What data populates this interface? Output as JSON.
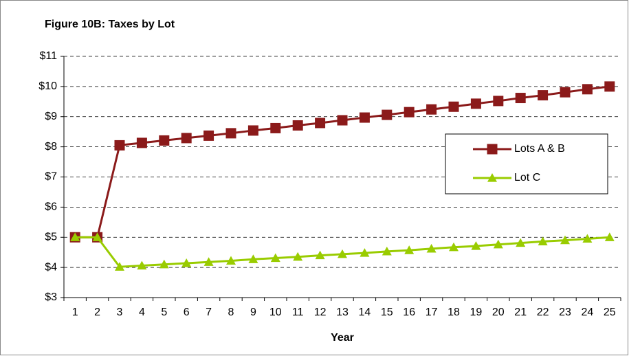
{
  "chart_data": {
    "type": "line",
    "title": "Figure 10B: Taxes by Lot",
    "x_label": "Year",
    "categories": [
      "1",
      "2",
      "3",
      "4",
      "5",
      "6",
      "7",
      "8",
      "9",
      "10",
      "11",
      "12",
      "13",
      "14",
      "15",
      "16",
      "17",
      "18",
      "19",
      "20",
      "21",
      "22",
      "23",
      "24",
      "25"
    ],
    "series": [
      {
        "name": "Lots A & B",
        "color": "#8b1a1a",
        "marker": "square",
        "values": [
          5,
          5,
          8.05,
          8.13,
          8.21,
          8.29,
          8.37,
          8.45,
          8.54,
          8.62,
          8.71,
          8.79,
          8.88,
          8.97,
          9.06,
          9.15,
          9.24,
          9.33,
          9.43,
          9.52,
          9.62,
          9.71,
          9.81,
          9.91,
          10.0
        ]
      },
      {
        "name": "Lot C",
        "color": "#99cc00",
        "marker": "triangle",
        "values": [
          5,
          5,
          4.02,
          4.06,
          4.1,
          4.14,
          4.18,
          4.22,
          4.27,
          4.31,
          4.35,
          4.4,
          4.44,
          4.48,
          4.53,
          4.57,
          4.62,
          4.67,
          4.71,
          4.76,
          4.81,
          4.86,
          4.9,
          4.95,
          5.0
        ]
      }
    ],
    "ylim": [
      3,
      11
    ],
    "yticks": [
      {
        "value": 3,
        "label": "$3"
      },
      {
        "value": 4,
        "label": "$4"
      },
      {
        "value": 5,
        "label": "$5"
      },
      {
        "value": 6,
        "label": "$6"
      },
      {
        "value": 7,
        "label": "$7"
      },
      {
        "value": 8,
        "label": "$8"
      },
      {
        "value": 9,
        "label": "$9"
      },
      {
        "value": 10,
        "label": "$10"
      },
      {
        "value": 11,
        "label": "$11"
      }
    ],
    "grid": true,
    "legend": "right"
  }
}
